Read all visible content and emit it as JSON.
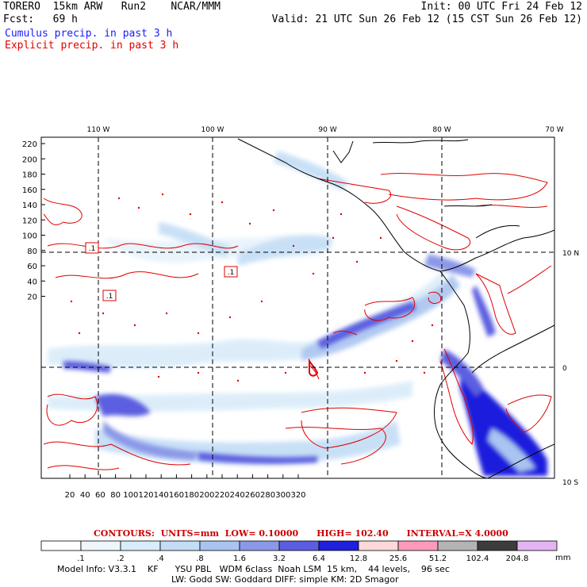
{
  "header": {
    "model": "TORERO",
    "resolution": "15km ARW",
    "run": "Run2",
    "center": "NCAR/MMM",
    "init": "Init: 00 UTC Fri 24 Feb 12",
    "fcst_label": "Fcst:",
    "fcst_hours": "69 h",
    "valid": "Valid: 21 UTC Sun 26 Feb 12 (15 CST Sun 26 Feb 12)"
  },
  "legend": {
    "cumulus": "Cumulus precip. in past 3 h",
    "explicit": "Explicit precip. in past 3 h"
  },
  "map": {
    "lon_labels": [
      "110 W",
      "100 W",
      "90 W",
      "80 W",
      "70 W"
    ],
    "lat_labels": [
      "10 N",
      "0",
      "10 S"
    ],
    "y_ticks": [
      "220",
      "200",
      "180",
      "160",
      "140",
      "120",
      "100",
      "80",
      "60",
      "40",
      "20"
    ],
    "x_ticks": [
      "20",
      "40",
      "60",
      "80",
      "100",
      "120",
      "140",
      "160",
      "180",
      "200",
      "220",
      "240",
      "260",
      "280",
      "300",
      "320"
    ],
    "contour_box_label": ".1"
  },
  "contours_info": {
    "contours": "CONTOURS:",
    "units": "UNITS=mm",
    "low": "LOW= 0.10000",
    "high": "HIGH= 102.40",
    "interval": "INTERVAL=X 4.0000"
  },
  "colorbar": {
    "labels": [
      ".1",
      ".2",
      ".4",
      ".8",
      "1.6",
      "3.2",
      "6.4",
      "12.8",
      "25.6",
      "51.2",
      "102.4",
      "204.8"
    ],
    "unit": "mm",
    "colors": [
      "#ffffff",
      "#eef6fc",
      "#d9ecf9",
      "#c3ddf6",
      "#a9c4f0",
      "#8b98e8",
      "#5b5ee0",
      "#1f1fdd",
      "#ffd9d9",
      "#ff99bb",
      "#b3b3b3",
      "#3c3c3c",
      "#e3b3f3"
    ]
  },
  "footer": {
    "line1": "Model Info: V3.3.1    KF      YSU PBL   WDM 6class  Noah LSM  15 km,    44 levels,    96 sec",
    "line2": "LW: Godd SW: Goddard DIFF: simple KM: 2D Smagor"
  }
}
